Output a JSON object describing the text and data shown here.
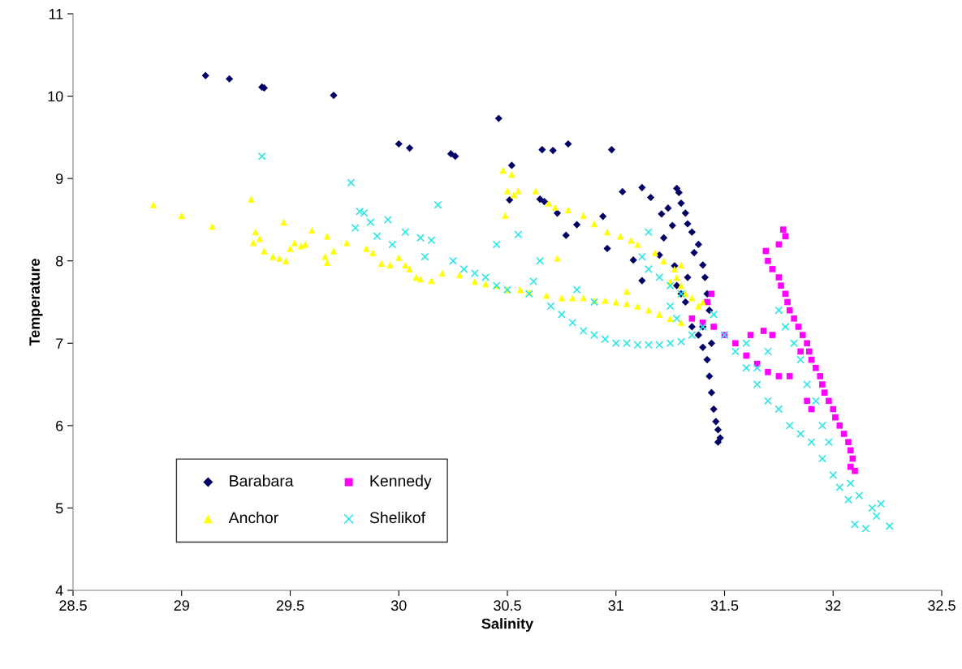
{
  "chart_data": {
    "type": "scatter",
    "xlabel": "Salinity",
    "ylabel": "Temperature",
    "xlim": [
      28.5,
      32.5
    ],
    "xticks": [
      28.5,
      29,
      29.5,
      30,
      30.5,
      31,
      31.5,
      32,
      32.5
    ],
    "ylim": [
      4,
      11
    ],
    "yticks": [
      4,
      5,
      6,
      7,
      8,
      9,
      10,
      11
    ],
    "grid": false,
    "legend": "bottom left",
    "series": [
      {
        "name": "Barabara",
        "color": "#000066",
        "marker": "diamond",
        "x": [
          29.11,
          29.22,
          29.37,
          29.38,
          29.7,
          30.0,
          30.05,
          30.24,
          30.26,
          30.46,
          30.52,
          30.66,
          30.71,
          30.78,
          30.98,
          30.51,
          30.65,
          30.67,
          30.73,
          30.77,
          30.82,
          30.94,
          30.96,
          31.03,
          31.12,
          31.16,
          31.08,
          31.12,
          31.21,
          31.24,
          31.26,
          31.22,
          31.2,
          31.27,
          31.28,
          31.29,
          31.3,
          31.32,
          31.33,
          31.35,
          31.38,
          31.36,
          31.4,
          31.3,
          31.32,
          31.35,
          31.38,
          31.4,
          31.42,
          31.43,
          31.44,
          31.45,
          31.46,
          31.47,
          31.48,
          31.47,
          31.41,
          31.42,
          31.43,
          31.4,
          31.44,
          31.33,
          31.28
        ],
        "values": [
          10.25,
          10.21,
          10.11,
          10.1,
          10.01,
          9.42,
          9.37,
          9.3,
          9.27,
          9.73,
          9.16,
          9.35,
          9.34,
          9.42,
          9.35,
          8.74,
          8.75,
          8.72,
          8.58,
          8.31,
          8.44,
          8.54,
          8.15,
          8.84,
          8.89,
          8.77,
          8.01,
          7.76,
          8.57,
          8.64,
          8.43,
          8.28,
          8.07,
          7.94,
          8.88,
          8.83,
          8.7,
          8.58,
          8.45,
          8.35,
          8.2,
          8.1,
          7.95,
          7.6,
          7.5,
          7.2,
          7.1,
          6.95,
          6.8,
          6.6,
          6.4,
          6.2,
          6.05,
          5.95,
          5.85,
          5.8,
          7.8,
          7.6,
          7.4,
          7.2,
          7.0,
          7.8,
          7.7
        ]
      },
      {
        "name": "Kennedy",
        "color": "#ff00ff",
        "marker": "square",
        "x": [
          31.77,
          31.78,
          31.75,
          31.69,
          31.7,
          31.72,
          31.75,
          31.76,
          31.78,
          31.79,
          31.8,
          31.82,
          31.84,
          31.86,
          31.88,
          31.89,
          31.9,
          31.92,
          31.94,
          31.95,
          31.96,
          31.98,
          32.0,
          32.01,
          32.03,
          32.05,
          32.07,
          32.08,
          32.09,
          32.1,
          32.08,
          31.35,
          31.4,
          31.45,
          31.5,
          31.55,
          31.6,
          31.65,
          31.7,
          31.75,
          31.8,
          31.85,
          31.62,
          31.68,
          31.72,
          31.9,
          31.88,
          31.42,
          31.44
        ],
        "values": [
          8.38,
          8.3,
          8.2,
          8.12,
          8.0,
          7.9,
          7.8,
          7.7,
          7.6,
          7.5,
          7.4,
          7.3,
          7.2,
          7.1,
          7.0,
          6.9,
          6.8,
          6.7,
          6.6,
          6.5,
          6.4,
          6.3,
          6.2,
          6.1,
          6.0,
          5.9,
          5.8,
          5.7,
          5.6,
          5.45,
          5.5,
          7.3,
          7.25,
          7.2,
          7.1,
          7.0,
          6.85,
          6.75,
          6.65,
          6.6,
          6.6,
          6.9,
          7.1,
          7.15,
          7.1,
          6.2,
          6.3,
          7.5,
          7.6
        ]
      },
      {
        "name": "Anchor",
        "color": "#ffff00",
        "marker": "triangle",
        "x": [
          28.87,
          29.0,
          29.14,
          29.32,
          29.34,
          29.36,
          29.33,
          29.38,
          29.42,
          29.45,
          29.47,
          29.48,
          29.5,
          29.52,
          29.55,
          29.57,
          29.6,
          29.67,
          29.66,
          29.67,
          29.7,
          29.76,
          29.85,
          29.88,
          29.92,
          30.0,
          30.05,
          30.08,
          30.1,
          30.15,
          30.03,
          29.96,
          30.2,
          30.28,
          30.35,
          30.4,
          30.45,
          30.5,
          30.56,
          30.6,
          30.68,
          30.75,
          30.8,
          30.85,
          30.9,
          30.95,
          31.0,
          31.05,
          31.1,
          31.15,
          31.2,
          31.25,
          31.3,
          30.48,
          30.52,
          30.5,
          30.53,
          30.55,
          30.49,
          30.63,
          30.69,
          30.72,
          30.78,
          30.85,
          30.9,
          30.96,
          31.02,
          31.07,
          31.1,
          31.18,
          31.22,
          31.27,
          31.28,
          31.3,
          31.32,
          31.35,
          31.38,
          31.4,
          31.05,
          30.73,
          31.3,
          31.25
        ],
        "values": [
          8.68,
          8.55,
          8.42,
          8.75,
          8.35,
          8.27,
          8.22,
          8.12,
          8.05,
          8.03,
          8.47,
          8.0,
          8.15,
          8.22,
          8.18,
          8.2,
          8.37,
          8.3,
          8.05,
          7.98,
          8.12,
          8.22,
          8.15,
          8.1,
          7.97,
          8.04,
          7.9,
          7.8,
          7.78,
          7.76,
          7.95,
          7.95,
          7.85,
          7.83,
          7.75,
          7.72,
          7.7,
          7.65,
          7.65,
          7.62,
          7.58,
          7.55,
          7.55,
          7.55,
          7.52,
          7.52,
          7.5,
          7.48,
          7.45,
          7.4,
          7.35,
          7.3,
          7.25,
          9.1,
          9.05,
          8.85,
          8.8,
          8.85,
          8.55,
          8.85,
          8.7,
          8.65,
          8.62,
          8.55,
          8.45,
          8.35,
          8.3,
          8.25,
          8.2,
          8.1,
          8.0,
          7.9,
          7.8,
          7.7,
          7.6,
          7.55,
          7.45,
          7.5,
          7.63,
          8.03,
          7.95,
          7.75
        ]
      },
      {
        "name": "Shelikof",
        "color": "#33e6e6",
        "marker": "cross",
        "x": [
          29.37,
          29.78,
          29.82,
          29.84,
          29.8,
          29.87,
          29.9,
          29.95,
          29.97,
          30.03,
          30.1,
          30.15,
          30.18,
          30.12,
          30.25,
          30.3,
          30.35,
          30.4,
          30.45,
          30.45,
          30.5,
          30.55,
          30.6,
          30.65,
          30.62,
          30.7,
          30.75,
          30.8,
          30.85,
          30.9,
          30.95,
          31.0,
          31.05,
          31.1,
          31.15,
          31.2,
          31.25,
          31.3,
          31.35,
          31.4,
          31.12,
          31.15,
          31.2,
          31.25,
          31.3,
          31.15,
          31.25,
          31.28,
          30.82,
          30.9,
          31.45,
          31.5,
          31.55,
          31.6,
          31.65,
          31.7,
          31.75,
          31.8,
          31.85,
          31.9,
          31.95,
          32.0,
          32.03,
          32.07,
          32.1,
          32.15,
          32.2,
          32.22,
          32.26,
          32.18,
          32.12,
          32.08,
          31.75,
          31.78,
          31.82,
          31.85,
          31.88,
          31.92,
          31.95,
          31.98,
          31.6,
          31.65,
          31.7
        ],
        "values": [
          9.27,
          8.95,
          8.6,
          8.58,
          8.4,
          8.47,
          8.3,
          8.5,
          8.2,
          8.35,
          8.28,
          8.25,
          8.68,
          8.05,
          8.0,
          7.9,
          7.85,
          7.8,
          8.2,
          7.7,
          7.65,
          8.32,
          7.6,
          8.0,
          7.75,
          7.45,
          7.35,
          7.25,
          7.15,
          7.1,
          7.05,
          7.0,
          7.0,
          6.98,
          6.98,
          6.98,
          7.0,
          7.02,
          7.1,
          7.2,
          8.05,
          7.9,
          7.8,
          7.7,
          7.6,
          8.35,
          7.45,
          7.3,
          7.65,
          7.5,
          7.35,
          7.1,
          6.9,
          6.7,
          6.5,
          6.3,
          6.2,
          6.0,
          5.9,
          5.8,
          5.6,
          5.4,
          5.25,
          5.1,
          4.8,
          4.75,
          4.9,
          5.05,
          4.78,
          5.0,
          5.15,
          5.3,
          7.4,
          7.2,
          7.0,
          6.8,
          6.5,
          6.3,
          6.0,
          5.8,
          7.0,
          6.7,
          6.9
        ]
      }
    ]
  }
}
